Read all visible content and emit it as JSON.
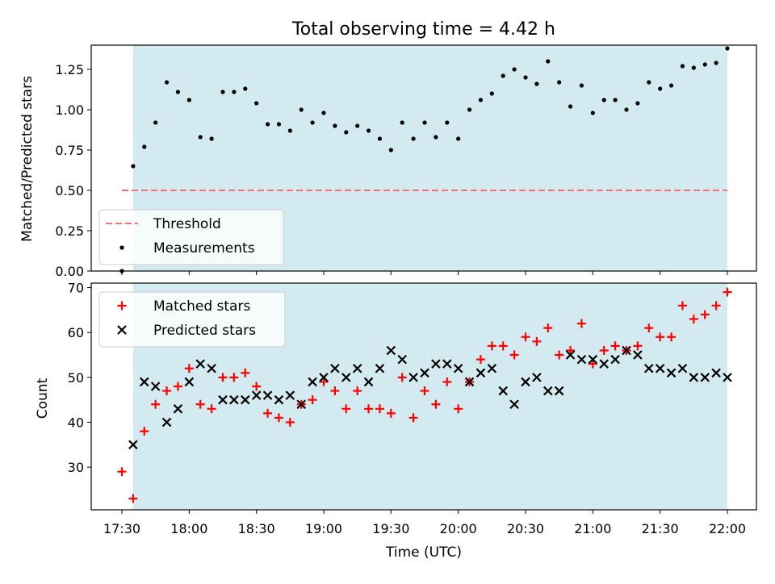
{
  "figure": {
    "title": "Total observing time = 4.42 h",
    "xlabel": "Time (UTC)",
    "x_ticks": [
      "17:30",
      "18:00",
      "18:30",
      "19:00",
      "19:30",
      "20:00",
      "20:30",
      "21:00",
      "21:30",
      "22:00"
    ],
    "shade_color": "#d3eaf0"
  },
  "chart_data": [
    {
      "type": "scatter",
      "ylabel": "Matched/Predicted stars",
      "ylim": [
        0,
        1.4
      ],
      "y_ticks": [
        "0.00",
        "0.25",
        "0.50",
        "0.75",
        "1.00",
        "1.25"
      ],
      "shaded_interval": [
        "17:35",
        "22:00"
      ],
      "legend_position": "lower-left",
      "threshold": {
        "name": "Threshold",
        "value": 0.5,
        "x_range": [
          "17:30",
          "22:00"
        ],
        "color": "#ff7070",
        "style": "dashed"
      },
      "series": [
        {
          "name": "Measurements",
          "marker": "dot",
          "color": "#000000",
          "x": [
            "17:30",
            "17:35",
            "17:40",
            "17:45",
            "17:50",
            "17:55",
            "18:00",
            "18:05",
            "18:10",
            "18:15",
            "18:20",
            "18:25",
            "18:30",
            "18:35",
            "18:40",
            "18:45",
            "18:50",
            "18:55",
            "19:00",
            "19:05",
            "19:10",
            "19:15",
            "19:20",
            "19:25",
            "19:30",
            "19:35",
            "19:40",
            "19:45",
            "19:50",
            "19:55",
            "20:00",
            "20:05",
            "20:10",
            "20:15",
            "20:20",
            "20:25",
            "20:30",
            "20:35",
            "20:40",
            "20:45",
            "20:50",
            "20:55",
            "21:00",
            "21:05",
            "21:10",
            "21:15",
            "21:20",
            "21:25",
            "21:30",
            "21:35",
            "21:40",
            "21:45",
            "21:50",
            "21:55",
            "22:00"
          ],
          "y": [
            0.0,
            0.65,
            0.77,
            0.92,
            1.17,
            1.11,
            1.06,
            0.83,
            0.82,
            1.11,
            1.11,
            1.13,
            1.04,
            0.91,
            0.91,
            0.87,
            1.0,
            0.92,
            0.98,
            0.9,
            0.86,
            0.9,
            0.87,
            0.82,
            0.75,
            0.92,
            0.82,
            0.92,
            0.83,
            0.92,
            0.82,
            1.0,
            1.06,
            1.1,
            1.21,
            1.25,
            1.2,
            1.16,
            1.3,
            1.17,
            1.02,
            1.15,
            0.98,
            1.06,
            1.06,
            1.0,
            1.04,
            1.17,
            1.13,
            1.15,
            1.27,
            1.26,
            1.28,
            1.29,
            1.38
          ]
        }
      ]
    },
    {
      "type": "scatter",
      "ylabel": "Count",
      "ylim": [
        20.5,
        71
      ],
      "y_ticks": [
        "30",
        "40",
        "50",
        "60",
        "70"
      ],
      "shaded_interval": [
        "17:35",
        "22:00"
      ],
      "legend_position": "upper-left",
      "series": [
        {
          "name": "Matched stars",
          "marker": "plus",
          "color": "#ff0000",
          "x": [
            "17:30",
            "17:35",
            "17:40",
            "17:45",
            "17:50",
            "17:55",
            "18:00",
            "18:05",
            "18:10",
            "18:15",
            "18:20",
            "18:25",
            "18:30",
            "18:35",
            "18:40",
            "18:45",
            "18:50",
            "18:55",
            "19:00",
            "19:05",
            "19:10",
            "19:15",
            "19:20",
            "19:25",
            "19:30",
            "19:35",
            "19:40",
            "19:45",
            "19:50",
            "19:55",
            "20:00",
            "20:05",
            "20:10",
            "20:15",
            "20:20",
            "20:25",
            "20:30",
            "20:35",
            "20:40",
            "20:45",
            "20:50",
            "20:55",
            "21:00",
            "21:05",
            "21:10",
            "21:15",
            "21:20",
            "21:25",
            "21:30",
            "21:35",
            "21:40",
            "21:45",
            "21:50",
            "21:55",
            "22:00"
          ],
          "y": [
            29,
            23,
            38,
            44,
            47,
            48,
            52,
            44,
            43,
            50,
            50,
            51,
            48,
            42,
            41,
            40,
            44,
            45,
            49,
            47,
            43,
            47,
            43,
            43,
            42,
            50,
            41,
            47,
            44,
            49,
            43,
            49,
            54,
            57,
            57,
            55,
            59,
            58,
            61,
            55,
            56,
            62,
            53,
            56,
            57,
            56,
            57,
            61,
            59,
            59,
            66,
            63,
            64,
            66,
            69
          ]
        },
        {
          "name": "Predicted stars",
          "marker": "x",
          "color": "#000000",
          "x": [
            "17:35",
            "17:40",
            "17:45",
            "17:50",
            "17:55",
            "18:00",
            "18:05",
            "18:10",
            "18:15",
            "18:20",
            "18:25",
            "18:30",
            "18:35",
            "18:40",
            "18:45",
            "18:50",
            "18:55",
            "19:00",
            "19:05",
            "19:10",
            "19:15",
            "19:20",
            "19:25",
            "19:30",
            "19:35",
            "19:40",
            "19:45",
            "19:50",
            "19:55",
            "20:00",
            "20:05",
            "20:10",
            "20:15",
            "20:20",
            "20:25",
            "20:30",
            "20:35",
            "20:40",
            "20:45",
            "20:50",
            "20:55",
            "21:00",
            "21:05",
            "21:10",
            "21:15",
            "21:20",
            "21:25",
            "21:30",
            "21:35",
            "21:40",
            "21:45",
            "21:50",
            "21:55",
            "22:00"
          ],
          "y": [
            35,
            49,
            48,
            40,
            43,
            49,
            53,
            52,
            45,
            45,
            45,
            46,
            46,
            45,
            46,
            44,
            49,
            50,
            52,
            50,
            52,
            49,
            52,
            56,
            54,
            50,
            51,
            53,
            53,
            52,
            49,
            51,
            52,
            47,
            44,
            49,
            50,
            47,
            47,
            55,
            54,
            54,
            53,
            54,
            56,
            55,
            52,
            52,
            51,
            52,
            50,
            50,
            51,
            50
          ]
        }
      ]
    }
  ]
}
